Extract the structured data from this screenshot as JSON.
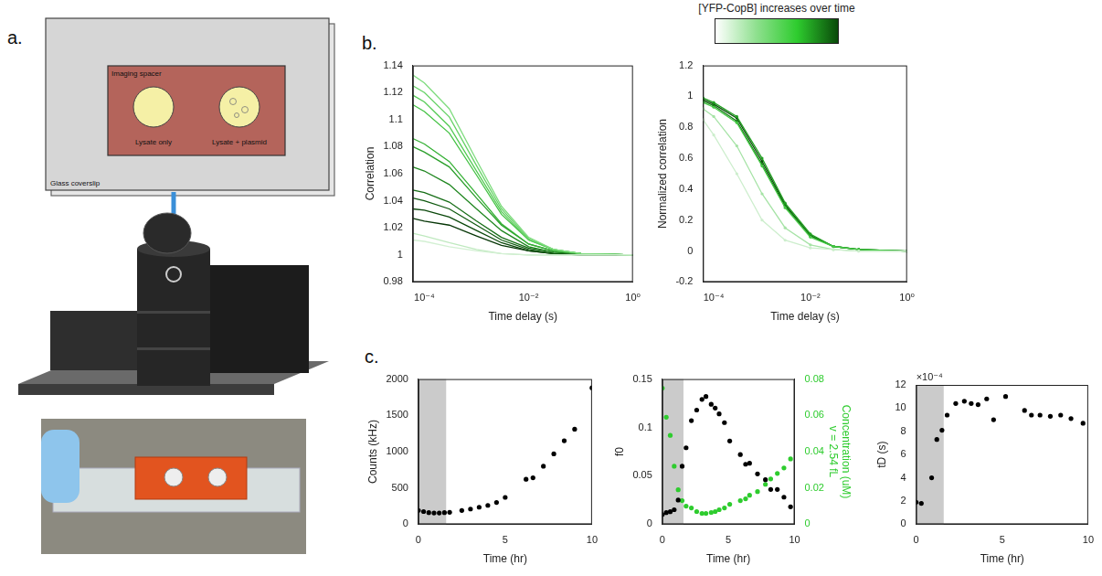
{
  "panel_a": {
    "letter": "a.",
    "coverslip_label": "Glass coverslip",
    "spacer_label": "Imaging spacer",
    "wells": [
      "Lysate only",
      "Lysate + plasmid"
    ]
  },
  "panel_b_colorbar": "[YFP-CopB] increases over time",
  "chart_data": [
    {
      "panel_label": "b.",
      "type": "line",
      "log": "x",
      "grid": false,
      "xlabel": "Time delay (s)",
      "ylabel": "Correlation",
      "xlim": [
        6e-05,
        1
      ],
      "xticks": [
        {
          "value": 0.0001,
          "label": "10⁻⁴"
        },
        {
          "value": 0.01,
          "label": "10⁻²"
        },
        {
          "value": 1,
          "label": "10⁰"
        }
      ],
      "ylim": [
        0.98,
        1.14
      ],
      "yticks": [
        0.98,
        1,
        1.02,
        1.04,
        1.06,
        1.08,
        1.1,
        1.12,
        1.14
      ],
      "x": [
        6e-05,
        0.0001,
        0.0003,
        0.001,
        0.003,
        0.01,
        0.03,
        0.1,
        1
      ],
      "series": [
        {
          "color": "#d3f0d3",
          "values": [
            1.011,
            1.01,
            1.006,
            1.003,
            1.001,
            1.0,
            1.0,
            1.0,
            1.0
          ]
        },
        {
          "color": "#bfe9bf",
          "values": [
            1.016,
            1.014,
            1.009,
            1.004,
            1.001,
            1.0,
            1.0,
            1.0,
            1.0
          ]
        },
        {
          "color": "#7fdc7f",
          "values": [
            1.133,
            1.127,
            1.108,
            1.07,
            1.036,
            1.013,
            1.004,
            1.001,
            1.0
          ]
        },
        {
          "color": "#66d266",
          "values": [
            1.125,
            1.12,
            1.102,
            1.066,
            1.034,
            1.012,
            1.004,
            1.001,
            1.0
          ]
        },
        {
          "color": "#55cb55",
          "values": [
            1.118,
            1.113,
            1.095,
            1.062,
            1.032,
            1.011,
            1.004,
            1.001,
            1.0
          ]
        },
        {
          "color": "#44c244",
          "values": [
            1.111,
            1.106,
            1.09,
            1.059,
            1.03,
            1.011,
            1.004,
            1.001,
            1.0
          ]
        },
        {
          "color": "#34b034",
          "values": [
            1.086,
            1.082,
            1.069,
            1.045,
            1.023,
            1.008,
            1.003,
            1.001,
            1.0
          ]
        },
        {
          "color": "#2a9e2a",
          "values": [
            1.08,
            1.076,
            1.065,
            1.042,
            1.022,
            1.008,
            1.003,
            1.001,
            1.0
          ]
        },
        {
          "color": "#1f861f",
          "values": [
            1.065,
            1.062,
            1.052,
            1.034,
            1.018,
            1.006,
            1.002,
            1.001,
            1.0
          ]
        },
        {
          "color": "#176e17",
          "values": [
            1.048,
            1.046,
            1.039,
            1.025,
            1.013,
            1.005,
            1.002,
            1.001,
            1.0
          ]
        },
        {
          "color": "#105a10",
          "values": [
            1.042,
            1.04,
            1.034,
            1.022,
            1.011,
            1.004,
            1.001,
            1.0,
            1.0
          ]
        },
        {
          "color": "#0b480b",
          "values": [
            1.034,
            1.033,
            1.028,
            1.018,
            1.009,
            1.003,
            1.001,
            1.0,
            1.0
          ]
        },
        {
          "color": "#063606",
          "values": [
            1.027,
            1.025,
            1.022,
            1.014,
            1.007,
            1.003,
            1.001,
            1.0,
            1.0
          ]
        }
      ]
    },
    {
      "type": "line",
      "log": "x",
      "grid": false,
      "marker": "circle",
      "xlabel": "Time delay (s)",
      "ylabel": "Normalized correlation",
      "xlim": [
        6e-05,
        1
      ],
      "xticks": [
        {
          "value": 0.0001,
          "label": "10⁻⁴"
        },
        {
          "value": 0.01,
          "label": "10⁻²"
        },
        {
          "value": 1,
          "label": "10⁰"
        }
      ],
      "ylim": [
        -0.2,
        1.2
      ],
      "yticks": [
        -0.2,
        0,
        0.2,
        0.4,
        0.6,
        0.8,
        1,
        1.2
      ],
      "x": [
        6e-05,
        0.0001,
        0.0003,
        0.001,
        0.003,
        0.01,
        0.03,
        0.1,
        1
      ],
      "series": [
        {
          "color": "#cdeecd",
          "values": [
            0.85,
            0.75,
            0.5,
            0.2,
            0.07,
            0.02,
            0.01,
            0.0,
            0.0
          ]
        },
        {
          "color": "#a6e3a6",
          "values": [
            0.92,
            0.87,
            0.68,
            0.37,
            0.15,
            0.04,
            0.01,
            0.0,
            0.0
          ]
        },
        {
          "color": "#45c845",
          "values": [
            0.96,
            0.93,
            0.83,
            0.55,
            0.28,
            0.09,
            0.03,
            0.01,
            0.0
          ]
        },
        {
          "color": "#22a022",
          "values": [
            0.99,
            0.96,
            0.87,
            0.6,
            0.31,
            0.11,
            0.03,
            0.01,
            0.0
          ]
        },
        {
          "color": "#137a13",
          "values": [
            0.97,
            0.94,
            0.84,
            0.56,
            0.29,
            0.1,
            0.03,
            0.01,
            0.0
          ]
        },
        {
          "color": "#0b4d0b",
          "values": [
            0.98,
            0.95,
            0.86,
            0.58,
            0.3,
            0.1,
            0.03,
            0.01,
            0.0
          ]
        }
      ]
    },
    {
      "panel_label": "c.",
      "type": "scatter",
      "grid": false,
      "marker": "circle",
      "xlabel": "Time (hr)",
      "ylabel": "Counts (kHz)",
      "xlim": [
        0,
        10
      ],
      "xticks": [
        0,
        5,
        10
      ],
      "ylim": [
        0,
        2000
      ],
      "yticks": [
        0,
        500,
        1000,
        1500,
        2000
      ],
      "shaded_x": [
        0,
        1.6
      ],
      "x": [
        0,
        0.3,
        0.6,
        0.9,
        1.2,
        1.5,
        1.8,
        2.5,
        3,
        3.5,
        4,
        4.5,
        5,
        6.2,
        6.6,
        7.2,
        7.8,
        8.4,
        9,
        10
      ],
      "series": [
        {
          "color": "#000000",
          "values": [
            190,
            175,
            160,
            155,
            155,
            160,
            165,
            190,
            210,
            235,
            260,
            300,
            370,
            620,
            640,
            800,
            970,
            1150,
            1310,
            1880
          ]
        }
      ]
    },
    {
      "type": "scatter",
      "grid": false,
      "marker": "circle",
      "xlabel": "Time (hr)",
      "ylabel": "f0",
      "y2label": "Concentration (uM)",
      "y2label_note": "v = 2.54 fL",
      "xlim": [
        0,
        10
      ],
      "xticks": [
        0,
        5,
        10
      ],
      "ylim": [
        0,
        0.15
      ],
      "yticks": [
        0,
        0.05,
        0.1,
        0.15
      ],
      "y2lim": [
        0,
        0.08
      ],
      "y2ticks": [
        0,
        0.02,
        0.04,
        0.06,
        0.08
      ],
      "shaded_x": [
        0,
        1.6
      ],
      "x": [
        0,
        0.3,
        0.6,
        0.9,
        1.2,
        1.5,
        1.8,
        2.2,
        2.6,
        3.0,
        3.3,
        3.7,
        4.0,
        4.3,
        4.7,
        5.1,
        5.9,
        6.3,
        6.6,
        7.2,
        7.8,
        8.2,
        8.7,
        9.2,
        9.7
      ],
      "series": [
        {
          "color": "#000000",
          "values": [
            0.01,
            0.012,
            0.013,
            0.015,
            0.025,
            0.06,
            0.079,
            0.107,
            0.118,
            0.129,
            0.132,
            0.124,
            0.12,
            0.114,
            0.105,
            0.086,
            0.072,
            0.062,
            0.063,
            0.052,
            0.046,
            0.036,
            0.036,
            0.028,
            0.018
          ]
        },
        {
          "color": "#2ecc2e",
          "axis": "y2",
          "values": [
            0.075,
            0.059,
            0.049,
            0.032,
            0.019,
            0.013,
            0.01,
            0.009,
            0.007,
            0.006,
            0.006,
            0.0065,
            0.007,
            0.008,
            0.009,
            0.011,
            0.013,
            0.014,
            0.016,
            0.018,
            0.022,
            0.025,
            0.028,
            0.031,
            0.036
          ]
        }
      ]
    },
    {
      "type": "scatter",
      "grid": false,
      "marker": "circle",
      "xlabel": "Time (hr)",
      "ylabel": "tD (s)",
      "annotation": "×10⁻⁴",
      "xlim": [
        0,
        10
      ],
      "xticks": [
        0,
        5,
        10
      ],
      "ylim": [
        0,
        0.0012
      ],
      "yticks": [
        {
          "value": 0,
          "label": "0"
        },
        {
          "value": 0.0002,
          "label": "2"
        },
        {
          "value": 0.0004,
          "label": "4"
        },
        {
          "value": 0.0006,
          "label": "6"
        },
        {
          "value": 0.0008,
          "label": "8"
        },
        {
          "value": 0.001,
          "label": "10"
        },
        {
          "value": 0.0012,
          "label": "12"
        }
      ],
      "shaded_x": [
        0,
        1.6
      ],
      "x": [
        0,
        0.3,
        0.9,
        1.2,
        1.5,
        1.8,
        2.3,
        2.8,
        3.2,
        3.6,
        4.1,
        4.5,
        5.2,
        6.3,
        6.7,
        7.2,
        7.8,
        8.4,
        9.0,
        9.7
      ],
      "series": [
        {
          "color": "#000000",
          "values": [
            0.00019,
            0.00018,
            0.0004,
            0.00073,
            0.00081,
            0.00094,
            0.00104,
            0.00106,
            0.00104,
            0.00103,
            0.00108,
            0.0009,
            0.0011,
            0.00098,
            0.00094,
            0.00094,
            0.00093,
            0.00094,
            0.00091,
            0.00087
          ]
        }
      ]
    }
  ]
}
